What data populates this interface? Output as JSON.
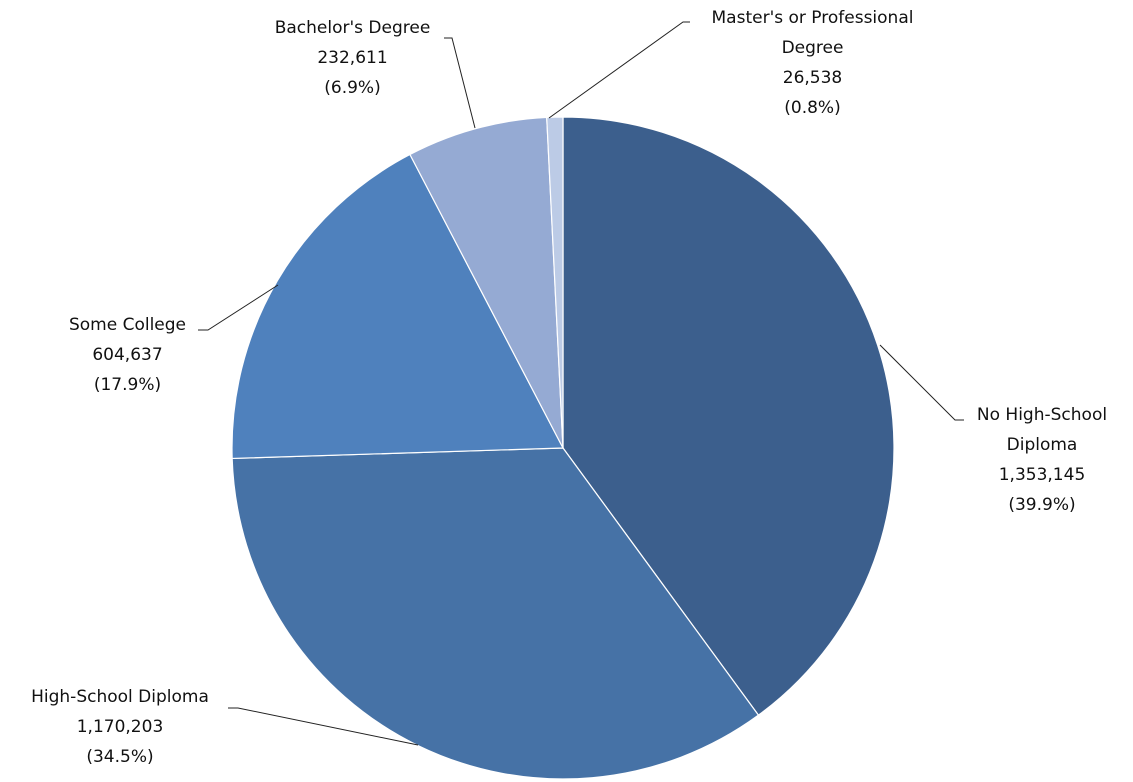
{
  "chart_data": {
    "type": "pie",
    "categories": [
      "No High-School Diploma",
      "High-School Diploma",
      "Some College",
      "Bachelor's Degree",
      "Master's or Professional Degree"
    ],
    "values": [
      1353145,
      1170203,
      604637,
      232611,
      26538
    ],
    "value_labels": [
      "1,353,145",
      "1,170,203",
      "604,637",
      "232,611",
      "26,538"
    ],
    "percent_labels": [
      "(39.9%)",
      "(34.5%)",
      "(17.9%)",
      "(6.9%)",
      "(0.8%)"
    ],
    "colors": [
      "#3c5f8d",
      "#4672a6",
      "#4f81bd",
      "#95aad3",
      "#bccbe6"
    ]
  }
}
